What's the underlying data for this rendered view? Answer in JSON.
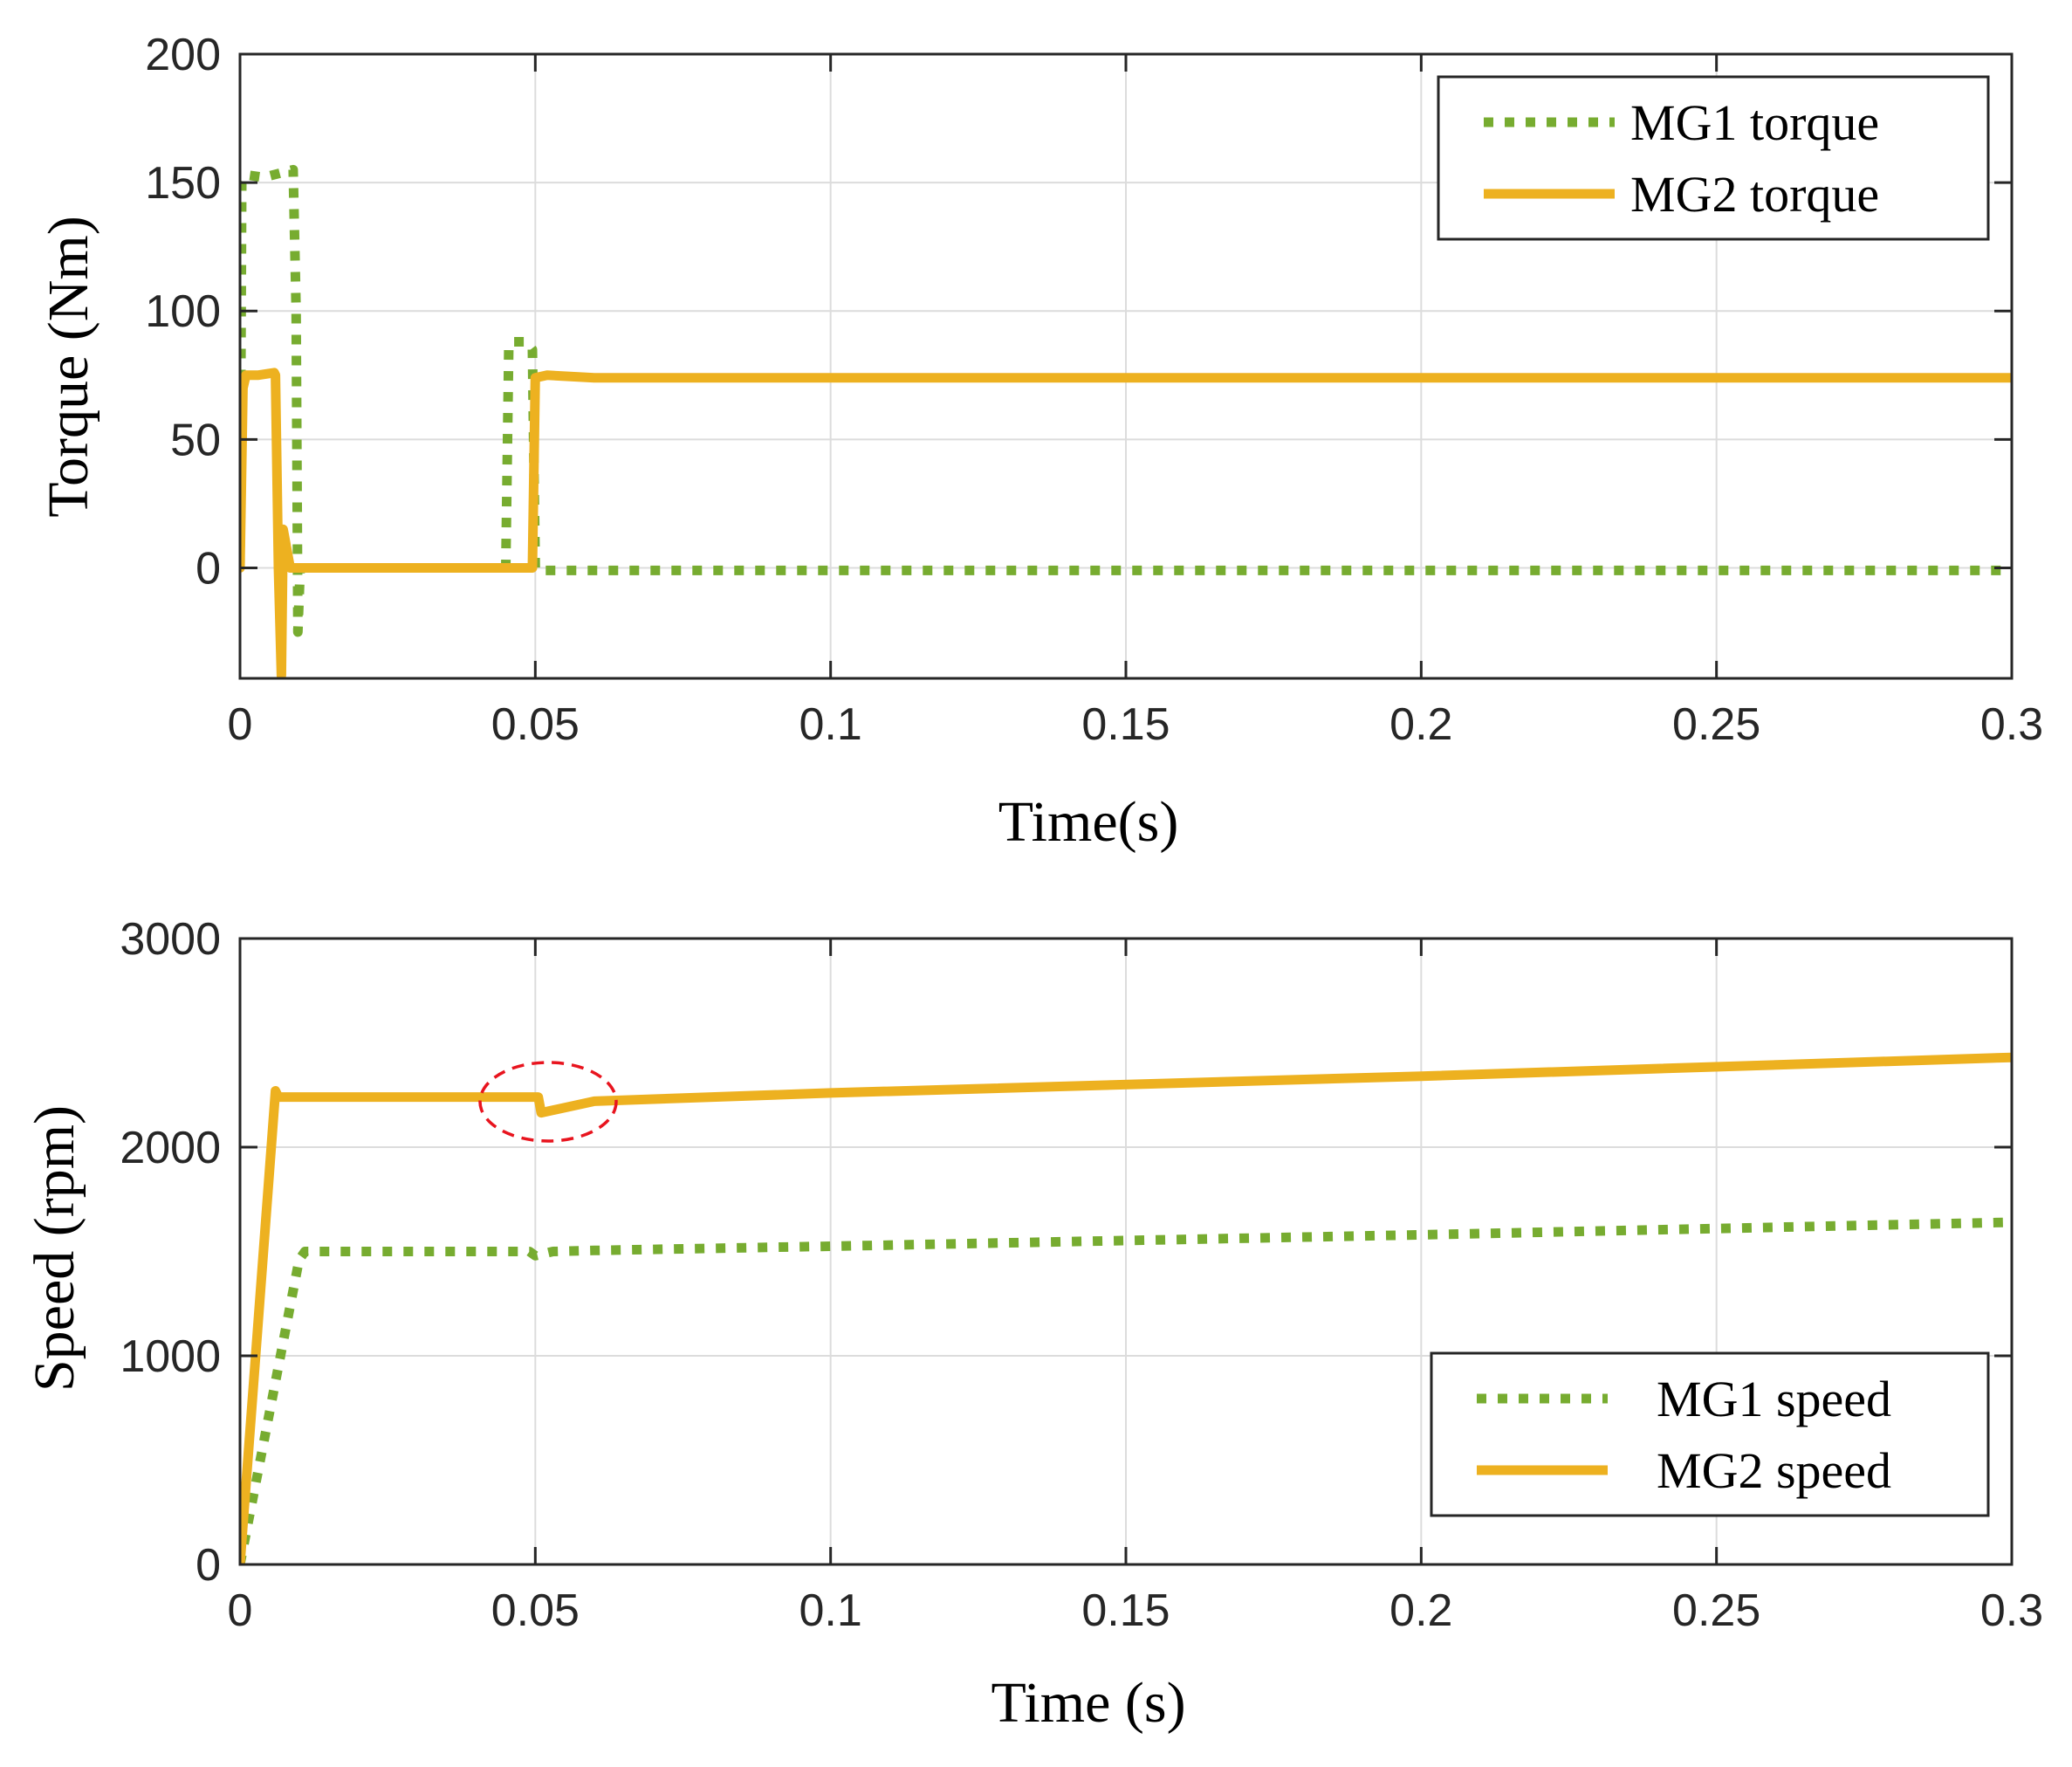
{
  "chart_data": [
    {
      "type": "line",
      "xlabel": "Time(s)",
      "ylabel": "Torque (Nm)",
      "xlim": [
        0,
        0.3
      ],
      "ylim": [
        -43,
        200
      ],
      "xticks": [
        0,
        0.05,
        0.1,
        0.15,
        0.2,
        0.25,
        0.3
      ],
      "xtick_labels": [
        "0",
        "0.05",
        "0.1",
        "0.15",
        "0.2",
        "0.25",
        "0.3"
      ],
      "yticks": [
        0,
        50,
        100,
        150,
        200
      ],
      "ytick_labels": [
        "0",
        "50",
        "100",
        "150",
        "200"
      ],
      "grid": true,
      "legend_position": "top-right",
      "series": [
        {
          "name": "MG1 torque",
          "style": "dotted",
          "color": "#77AC30",
          "x": [
            0,
            0.0003,
            0.001,
            0.004,
            0.009,
            0.0095,
            0.0098,
            0.0102,
            0.011,
            0.02,
            0.045,
            0.0455,
            0.046,
            0.0485,
            0.0495,
            0.05,
            0.051,
            0.06,
            0.1,
            0.2,
            0.3
          ],
          "y": [
            0,
            150,
            153,
            152,
            155,
            100,
            -25,
            0,
            0,
            0,
            0,
            85,
            88,
            88,
            85,
            0,
            -1,
            -1,
            -1,
            -1,
            -1
          ]
        },
        {
          "name": "MG2 torque",
          "style": "solid",
          "color": "#EDB120",
          "x": [
            0,
            0.0005,
            0.001,
            0.003,
            0.0058,
            0.006,
            0.0065,
            0.007,
            0.0073,
            0.0085,
            0.01,
            0.02,
            0.049,
            0.0495,
            0.05,
            0.052,
            0.06,
            0.1,
            0.2,
            0.3
          ],
          "y": [
            0,
            70,
            75,
            75,
            76,
            75,
            0,
            -42,
            15,
            0,
            0,
            0,
            0,
            0,
            74,
            75,
            74,
            74,
            74,
            74
          ]
        }
      ]
    },
    {
      "type": "line",
      "xlabel": "Time (s)",
      "ylabel": "Speed (rpm)",
      "xlim": [
        0,
        0.3
      ],
      "ylim": [
        0,
        3000
      ],
      "xticks": [
        0,
        0.05,
        0.1,
        0.15,
        0.2,
        0.25,
        0.3
      ],
      "xtick_labels": [
        "0",
        "0.05",
        "0.1",
        "0.15",
        "0.2",
        "0.25",
        "0.3"
      ],
      "yticks": [
        0,
        1000,
        2000,
        3000
      ],
      "ytick_labels": [
        "0",
        "1000",
        "2000",
        "3000"
      ],
      "grid": true,
      "legend_position": "bottom-right",
      "annotation": "red dashed ellipse around the dip near t = 0.05 s",
      "series": [
        {
          "name": "MG1 speed",
          "style": "dotted",
          "color": "#77AC30",
          "x": [
            0,
            0.01,
            0.011,
            0.049,
            0.05,
            0.053,
            0.06,
            0.1,
            0.2,
            0.3
          ],
          "y": [
            0,
            1460,
            1500,
            1500,
            1480,
            1500,
            1505,
            1525,
            1580,
            1640
          ]
        },
        {
          "name": "MG2 speed",
          "style": "solid",
          "color": "#EDB120",
          "x": [
            0,
            0.006,
            0.0065,
            0.007,
            0.049,
            0.0505,
            0.051,
            0.06,
            0.1,
            0.2,
            0.3
          ],
          "y": [
            0,
            2270,
            2240,
            2240,
            2240,
            2240,
            2165,
            2220,
            2260,
            2340,
            2430
          ]
        }
      ]
    }
  ]
}
